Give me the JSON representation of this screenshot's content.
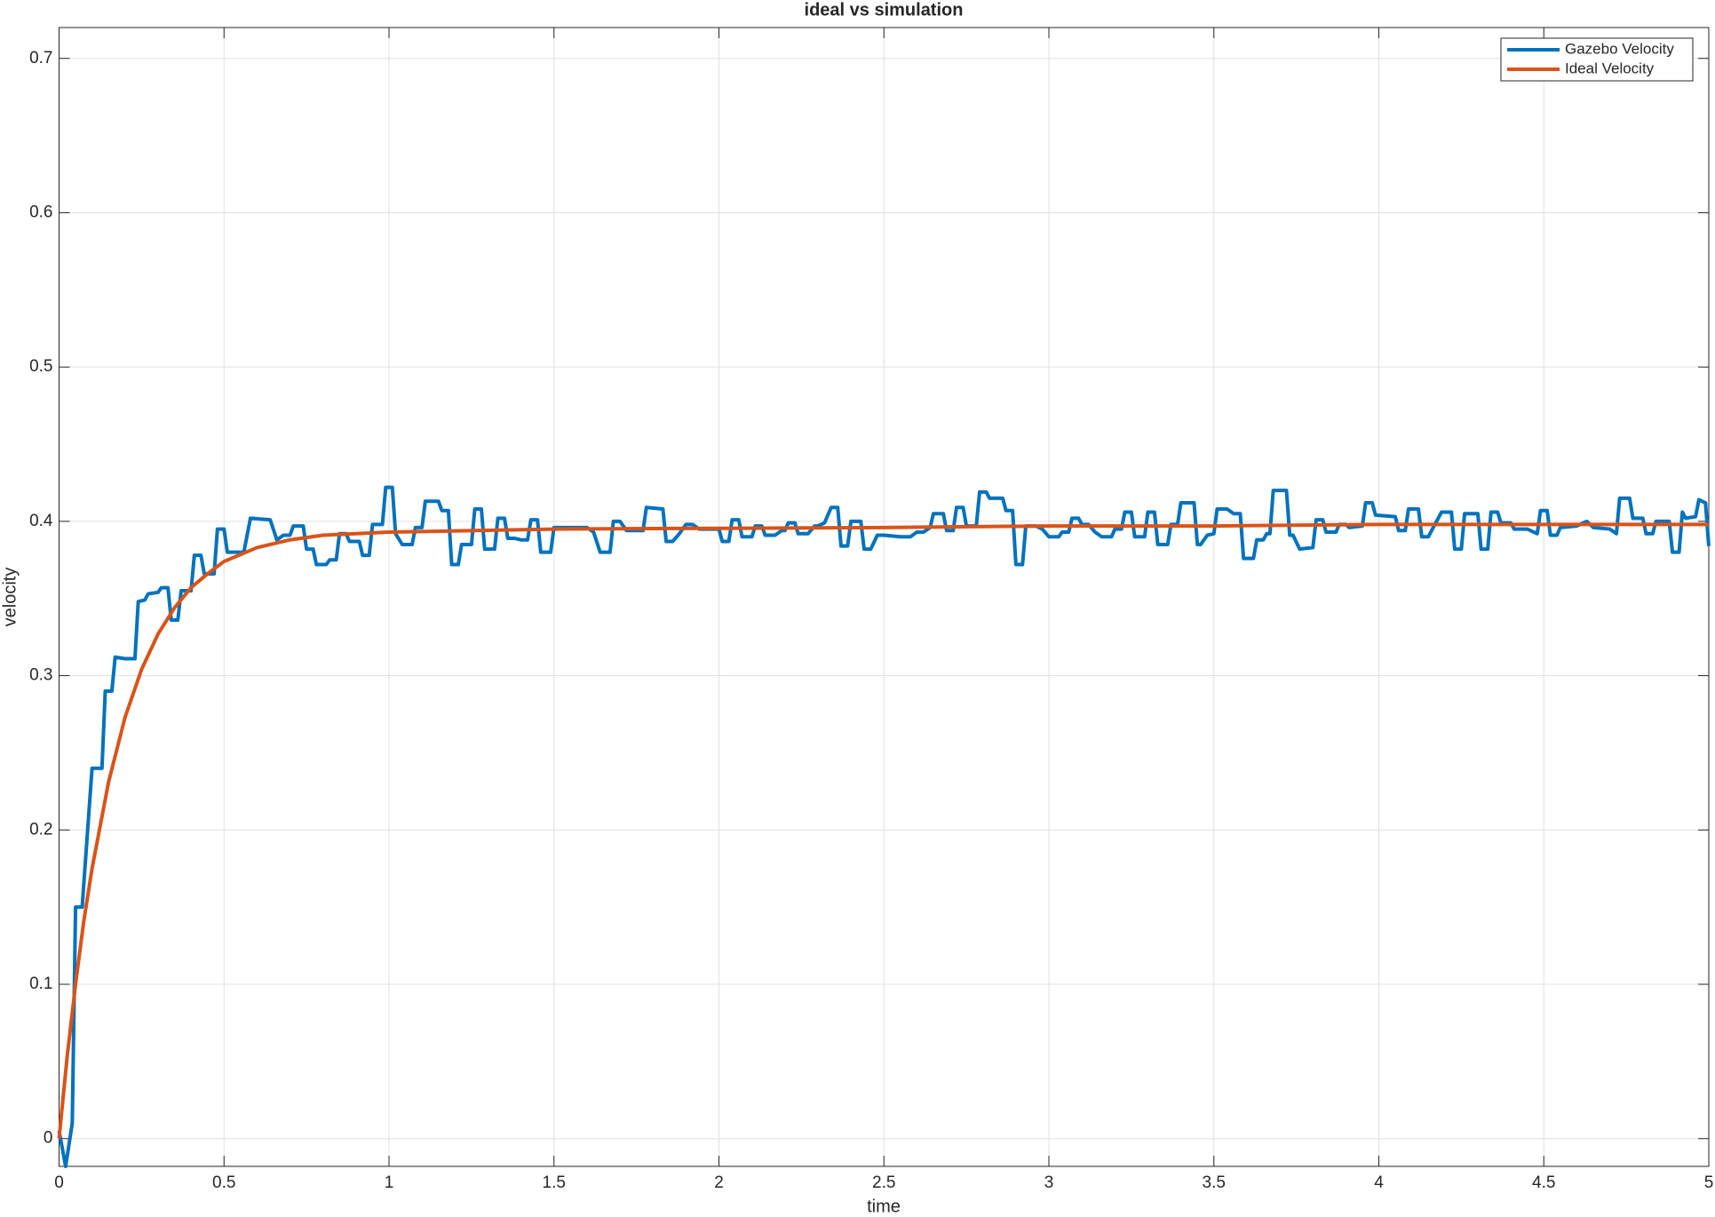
{
  "chart_data": {
    "type": "line",
    "title": "ideal vs simulation",
    "x_label": "time",
    "y_label": "velocity",
    "xlim": [
      0,
      5
    ],
    "ylim": [
      -0.018,
      0.72
    ],
    "xticks": [
      0,
      0.5,
      1,
      1.5,
      2,
      2.5,
      3,
      3.5,
      4,
      4.5,
      5
    ],
    "yticks": [
      0,
      0.1,
      0.2,
      0.3,
      0.4,
      0.5,
      0.6,
      0.7
    ],
    "grid": true,
    "legend": "northeast",
    "series": [
      {
        "name": "Gazebo Velocity",
        "color": "#0072BD",
        "x": [
          0,
          0.02,
          0.04,
          0.05,
          0.07,
          0.1,
          0.13,
          0.14,
          0.16,
          0.17,
          0.2,
          0.23,
          0.24,
          0.26,
          0.27,
          0.3,
          0.31,
          0.33,
          0.34,
          0.36,
          0.37,
          0.4,
          0.41,
          0.43,
          0.44,
          0.47,
          0.48,
          0.5,
          0.51,
          0.56,
          0.58,
          0.64,
          0.66,
          0.68,
          0.7,
          0.71,
          0.74,
          0.75,
          0.77,
          0.78,
          0.81,
          0.82,
          0.84,
          0.85,
          0.87,
          0.88,
          0.91,
          0.92,
          0.94,
          0.95,
          0.98,
          0.99,
          1.01,
          1.02,
          1.04,
          1.07,
          1.08,
          1.1,
          1.11,
          1.15,
          1.16,
          1.18,
          1.19,
          1.21,
          1.22,
          1.25,
          1.26,
          1.28,
          1.29,
          1.32,
          1.33,
          1.35,
          1.36,
          1.38,
          1.4,
          1.42,
          1.43,
          1.45,
          1.46,
          1.49,
          1.5,
          1.55,
          1.6,
          1.62,
          1.64,
          1.67,
          1.68,
          1.7,
          1.72,
          1.77,
          1.78,
          1.83,
          1.84,
          1.86,
          1.88,
          1.9,
          1.92,
          1.94,
          2.0,
          2.01,
          2.03,
          2.04,
          2.06,
          2.07,
          2.1,
          2.11,
          2.13,
          2.14,
          2.17,
          2.19,
          2.2,
          2.21,
          2.23,
          2.24,
          2.27,
          2.29,
          2.3,
          2.32,
          2.34,
          2.36,
          2.37,
          2.39,
          2.4,
          2.43,
          2.44,
          2.46,
          2.48,
          2.5,
          2.55,
          2.58,
          2.6,
          2.62,
          2.64,
          2.65,
          2.68,
          2.69,
          2.71,
          2.72,
          2.74,
          2.75,
          2.78,
          2.79,
          2.81,
          2.82,
          2.86,
          2.87,
          2.89,
          2.9,
          2.92,
          2.93,
          2.96,
          2.98,
          3.0,
          3.03,
          3.04,
          3.06,
          3.07,
          3.09,
          3.1,
          3.12,
          3.14,
          3.16,
          3.19,
          3.2,
          3.22,
          3.23,
          3.25,
          3.26,
          3.29,
          3.3,
          3.32,
          3.33,
          3.36,
          3.37,
          3.39,
          3.4,
          3.44,
          3.45,
          3.46,
          3.48,
          3.5,
          3.51,
          3.54,
          3.56,
          3.58,
          3.59,
          3.62,
          3.63,
          3.65,
          3.66,
          3.67,
          3.68,
          3.72,
          3.73,
          3.74,
          3.76,
          3.8,
          3.81,
          3.83,
          3.84,
          3.87,
          3.88,
          3.9,
          3.91,
          3.95,
          3.96,
          3.98,
          3.99,
          4.05,
          4.06,
          4.08,
          4.09,
          4.12,
          4.13,
          4.15,
          4.17,
          4.19,
          4.22,
          4.23,
          4.25,
          4.26,
          4.3,
          4.31,
          4.33,
          4.34,
          4.36,
          4.37,
          4.4,
          4.41,
          4.45,
          4.48,
          4.49,
          4.51,
          4.52,
          4.54,
          4.55,
          4.6,
          4.63,
          4.65,
          4.7,
          4.72,
          4.73,
          4.76,
          4.77,
          4.8,
          4.81,
          4.83,
          4.84,
          4.88,
          4.89,
          4.91,
          4.92,
          4.93,
          4.96,
          4.97,
          4.99,
          5.0
        ],
        "values": [
          0.005,
          -0.018,
          0.01,
          0.15,
          0.15,
          0.24,
          0.24,
          0.29,
          0.29,
          0.312,
          0.311,
          0.311,
          0.348,
          0.349,
          0.353,
          0.354,
          0.357,
          0.357,
          0.336,
          0.336,
          0.355,
          0.355,
          0.378,
          0.378,
          0.366,
          0.366,
          0.395,
          0.395,
          0.38,
          0.38,
          0.402,
          0.401,
          0.388,
          0.391,
          0.391,
          0.397,
          0.397,
          0.382,
          0.382,
          0.372,
          0.372,
          0.375,
          0.375,
          0.392,
          0.392,
          0.387,
          0.387,
          0.378,
          0.378,
          0.398,
          0.398,
          0.422,
          0.422,
          0.392,
          0.385,
          0.385,
          0.396,
          0.396,
          0.413,
          0.413,
          0.407,
          0.407,
          0.372,
          0.372,
          0.385,
          0.385,
          0.408,
          0.408,
          0.382,
          0.382,
          0.402,
          0.402,
          0.389,
          0.389,
          0.388,
          0.388,
          0.401,
          0.401,
          0.38,
          0.38,
          0.396,
          0.396,
          0.396,
          0.393,
          0.38,
          0.38,
          0.4,
          0.4,
          0.394,
          0.394,
          0.409,
          0.408,
          0.387,
          0.387,
          0.392,
          0.398,
          0.398,
          0.395,
          0.395,
          0.387,
          0.387,
          0.401,
          0.401,
          0.39,
          0.39,
          0.397,
          0.397,
          0.391,
          0.391,
          0.394,
          0.394,
          0.399,
          0.399,
          0.392,
          0.392,
          0.397,
          0.397,
          0.399,
          0.409,
          0.409,
          0.384,
          0.384,
          0.4,
          0.4,
          0.382,
          0.382,
          0.391,
          0.391,
          0.39,
          0.39,
          0.393,
          0.393,
          0.396,
          0.405,
          0.405,
          0.394,
          0.394,
          0.409,
          0.409,
          0.397,
          0.397,
          0.419,
          0.419,
          0.415,
          0.415,
          0.407,
          0.407,
          0.372,
          0.372,
          0.397,
          0.397,
          0.395,
          0.39,
          0.39,
          0.393,
          0.393,
          0.402,
          0.402,
          0.398,
          0.398,
          0.393,
          0.39,
          0.39,
          0.395,
          0.395,
          0.406,
          0.406,
          0.39,
          0.39,
          0.406,
          0.406,
          0.385,
          0.385,
          0.398,
          0.398,
          0.412,
          0.412,
          0.385,
          0.385,
          0.391,
          0.392,
          0.408,
          0.408,
          0.405,
          0.405,
          0.376,
          0.376,
          0.388,
          0.388,
          0.392,
          0.392,
          0.42,
          0.42,
          0.391,
          0.391,
          0.382,
          0.383,
          0.401,
          0.401,
          0.393,
          0.393,
          0.398,
          0.398,
          0.396,
          0.397,
          0.412,
          0.412,
          0.404,
          0.403,
          0.394,
          0.394,
          0.408,
          0.408,
          0.39,
          0.39,
          0.398,
          0.406,
          0.406,
          0.382,
          0.382,
          0.405,
          0.405,
          0.382,
          0.382,
          0.406,
          0.406,
          0.399,
          0.399,
          0.395,
          0.395,
          0.392,
          0.407,
          0.407,
          0.391,
          0.391,
          0.396,
          0.397,
          0.4,
          0.396,
          0.395,
          0.392,
          0.415,
          0.415,
          0.402,
          0.402,
          0.392,
          0.392,
          0.4,
          0.4,
          0.38,
          0.38,
          0.406,
          0.402,
          0.403,
          0.414,
          0.412,
          0.384
        ]
      },
      {
        "name": "Ideal Velocity",
        "color": "#D95319",
        "x": [
          0,
          0.025,
          0.05,
          0.075,
          0.1,
          0.15,
          0.2,
          0.25,
          0.3,
          0.35,
          0.4,
          0.45,
          0.5,
          0.6,
          0.7,
          0.8,
          0.9,
          1,
          1.5,
          2,
          2.5,
          3,
          3.5,
          4,
          4.5,
          5
        ],
        "values": [
          0,
          0.054,
          0.1,
          0.141,
          0.175,
          0.231,
          0.273,
          0.304,
          0.327,
          0.344,
          0.357,
          0.366,
          0.374,
          0.383,
          0.388,
          0.391,
          0.392,
          0.393,
          0.395,
          0.3955,
          0.396,
          0.397,
          0.397,
          0.398,
          0.398,
          0.398
        ]
      }
    ]
  }
}
